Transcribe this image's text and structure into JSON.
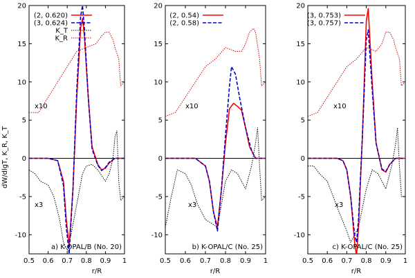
{
  "figure": {
    "ylabel": "dW/dlgT,  K_R, K_T",
    "xlabel": "r/R"
  },
  "colors": {
    "solid": "#ff0000",
    "dashed": "#0000cc",
    "kt": "#000000",
    "kr": "#cc0000"
  },
  "chart_data": [
    {
      "type": "line",
      "caption": "a) K-OPAL/B (No. 20)",
      "xlim": [
        0.5,
        1.0
      ],
      "ylim": [
        -12.5,
        20
      ],
      "xticks": [
        "0.5",
        "0.6",
        "0.7",
        "0.8",
        "0.9",
        "1"
      ],
      "yticks": [
        "-10",
        "-5",
        "0",
        "5",
        "10",
        "15",
        "20"
      ],
      "annotations": [
        "x10",
        "x3"
      ],
      "series": [
        {
          "name": "(2, 0.620)",
          "style": "solid",
          "x": [
            0.5,
            0.6,
            0.65,
            0.68,
            0.695,
            0.71,
            0.73,
            0.75,
            0.77,
            0.78,
            0.79,
            0.81,
            0.83,
            0.86,
            0.88,
            0.9,
            0.92,
            0.95,
            0.98,
            1.0
          ],
          "y": [
            0,
            0,
            -0.3,
            -3,
            -8,
            -11.5,
            -4,
            8,
            17,
            18.3,
            16,
            8,
            1.5,
            -0.8,
            -1.5,
            -1.3,
            -0.6,
            0,
            0,
            0
          ]
        },
        {
          "name": "(3, 0.624)",
          "style": "dashed",
          "x": [
            0.5,
            0.6,
            0.65,
            0.68,
            0.695,
            0.71,
            0.73,
            0.75,
            0.77,
            0.78,
            0.79,
            0.81,
            0.83,
            0.86,
            0.88,
            0.9,
            0.92,
            0.95,
            0.98,
            1.0
          ],
          "y": [
            0,
            0,
            -0.3,
            -3.5,
            -9,
            -12.5,
            -4,
            9,
            18.5,
            20,
            17,
            8,
            1.2,
            -0.9,
            -1.6,
            -1.2,
            -0.5,
            0,
            0,
            0
          ]
        },
        {
          "name": "K_T",
          "style": "dotted",
          "x": [
            0.5,
            0.53,
            0.56,
            0.6,
            0.63,
            0.66,
            0.68,
            0.7,
            0.72,
            0.75,
            0.78,
            0.8,
            0.83,
            0.86,
            0.9,
            0.92,
            0.94,
            0.95,
            0.96,
            0.97,
            0.98,
            1.0
          ],
          "y": [
            -1.5,
            -2,
            -3,
            -3.5,
            -5,
            -8,
            -11,
            -12,
            -10,
            -6,
            -2,
            -1,
            -0.8,
            -1.5,
            -3,
            -2,
            0,
            2.8,
            3.6,
            -3,
            -5.5,
            -5
          ]
        },
        {
          "name": "K_R",
          "style": "dotted",
          "x": [
            0.5,
            0.55,
            0.6,
            0.65,
            0.7,
            0.75,
            0.8,
            0.85,
            0.88,
            0.9,
            0.92,
            0.94,
            0.95,
            0.97,
            0.98,
            1.0
          ],
          "y": [
            6,
            6,
            8,
            10,
            12,
            14,
            14.5,
            15,
            16,
            16.5,
            16.5,
            15.5,
            14.5,
            13,
            9.5,
            10
          ]
        }
      ]
    },
    {
      "type": "line",
      "caption": "b) K-OPAL/C (No. 25)",
      "xlim": [
        0.5,
        1.0
      ],
      "ylim": [
        -12.5,
        20
      ],
      "xticks": [
        "0.5",
        "0.6",
        "0.7",
        "0.8",
        "0.9",
        "1"
      ],
      "yticks": [
        "-10",
        "-5",
        "0",
        "5",
        "10",
        "15",
        "20"
      ],
      "annotations": [
        "x10",
        "x3"
      ],
      "series": [
        {
          "name": "(2, 0.54)",
          "style": "solid",
          "x": [
            0.5,
            0.6,
            0.65,
            0.7,
            0.72,
            0.74,
            0.76,
            0.78,
            0.8,
            0.82,
            0.84,
            0.86,
            0.88,
            0.9,
            0.92,
            0.95,
            1.0
          ],
          "y": [
            0,
            0,
            0,
            -1,
            -3,
            -7,
            -9,
            -4,
            2,
            6.5,
            7.2,
            6.8,
            6.3,
            4,
            1.5,
            0,
            0
          ]
        },
        {
          "name": "(2, 0.58)",
          "style": "dashed",
          "x": [
            0.5,
            0.6,
            0.65,
            0.7,
            0.72,
            0.74,
            0.76,
            0.78,
            0.8,
            0.82,
            0.83,
            0.85,
            0.87,
            0.9,
            0.93,
            0.95,
            1.0
          ],
          "y": [
            0,
            0,
            0,
            -1,
            -3,
            -7,
            -9.5,
            -4,
            3,
            9.5,
            12,
            11,
            8,
            4,
            1,
            0,
            0
          ]
        },
        {
          "name": "K_T",
          "style": "dotted",
          "x": [
            0.5,
            0.53,
            0.56,
            0.6,
            0.63,
            0.66,
            0.7,
            0.73,
            0.76,
            0.78,
            0.8,
            0.83,
            0.86,
            0.9,
            0.93,
            0.95,
            0.96,
            0.97,
            0.98,
            1.0
          ],
          "y": [
            -9,
            -5,
            -1.5,
            -2,
            -3.5,
            -6,
            -8,
            -8.5,
            -9,
            -6,
            -3,
            -1.5,
            -2,
            -4,
            -1,
            2,
            4,
            -1,
            -5.5,
            -5
          ]
        },
        {
          "name": "K_R",
          "style": "dotted",
          "x": [
            0.5,
            0.55,
            0.6,
            0.65,
            0.7,
            0.75,
            0.8,
            0.85,
            0.88,
            0.9,
            0.92,
            0.94,
            0.95,
            0.97,
            0.98,
            1.0
          ],
          "y": [
            5.5,
            6,
            8,
            10,
            12,
            13,
            14.5,
            14,
            14,
            15,
            16.5,
            17,
            16.5,
            13,
            9.5,
            10
          ]
        }
      ]
    },
    {
      "type": "line",
      "caption": "c) K-OPAL/C (No. 25)",
      "xlim": [
        0.5,
        1.0
      ],
      "ylim": [
        -12.5,
        20
      ],
      "xticks": [
        "0.5",
        "0.6",
        "0.7",
        "0.8",
        "0.9",
        "1"
      ],
      "yticks": [
        "-10",
        "-5",
        "0",
        "5",
        "10",
        "15",
        "20"
      ],
      "annotations": [
        "x10",
        "x3"
      ],
      "series": [
        {
          "name": "(3, 0.753)",
          "style": "solid",
          "x": [
            0.5,
            0.6,
            0.65,
            0.68,
            0.7,
            0.72,
            0.74,
            0.75,
            0.76,
            0.78,
            0.8,
            0.81,
            0.83,
            0.85,
            0.88,
            0.9,
            0.92,
            0.95,
            0.98,
            1.0
          ],
          "y": [
            0,
            0,
            0,
            -0.3,
            -1.5,
            -5,
            -11,
            -12.8,
            -9,
            3,
            18,
            19.6,
            10,
            2,
            -1.5,
            -1.8,
            -0.8,
            0,
            0,
            0
          ]
        },
        {
          "name": "(3, 0.757)",
          "style": "dashed",
          "x": [
            0.5,
            0.6,
            0.65,
            0.68,
            0.7,
            0.72,
            0.74,
            0.75,
            0.76,
            0.78,
            0.8,
            0.81,
            0.83,
            0.85,
            0.88,
            0.9,
            0.92,
            0.95,
            0.98,
            1.0
          ],
          "y": [
            0,
            0,
            0,
            -0.3,
            -1.5,
            -5,
            -10,
            -11,
            -8,
            3,
            15.5,
            16.8,
            9,
            2,
            -1.4,
            -1.7,
            -0.8,
            0,
            0,
            0
          ]
        },
        {
          "name": "K_T",
          "style": "dotted",
          "x": [
            0.5,
            0.53,
            0.56,
            0.6,
            0.63,
            0.66,
            0.7,
            0.72,
            0.74,
            0.76,
            0.8,
            0.83,
            0.86,
            0.9,
            0.93,
            0.95,
            0.96,
            0.97,
            0.98,
            1.0
          ],
          "y": [
            -1,
            -1,
            -2,
            -3,
            -5,
            -7,
            -9.5,
            -11,
            -10,
            -9,
            -4,
            -1.5,
            -2,
            -4,
            -1,
            1.8,
            4,
            -1,
            -5,
            -5
          ]
        },
        {
          "name": "K_R",
          "style": "dotted",
          "x": [
            0.5,
            0.55,
            0.6,
            0.65,
            0.7,
            0.75,
            0.8,
            0.85,
            0.88,
            0.9,
            0.92,
            0.94,
            0.95,
            0.97,
            0.98,
            1.0
          ],
          "y": [
            5.5,
            6,
            8,
            10,
            12,
            13,
            14.5,
            14,
            15,
            16.5,
            16.5,
            15.5,
            14.5,
            13,
            9.5,
            10
          ]
        }
      ]
    }
  ]
}
